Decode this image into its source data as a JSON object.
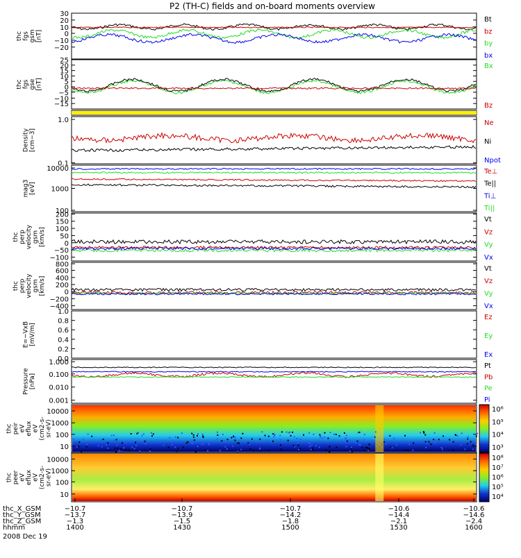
{
  "title": "P2 (TH-C) fields and on-board moments overview",
  "colors": {
    "black": "#000000",
    "red": "#cc0000",
    "green": "#22dd22",
    "blue": "#0000ee",
    "yellow": "#ffee00"
  },
  "panels": [
    {
      "ylabel": [
        "thc",
        "fgs",
        "gsm",
        "[nT]"
      ],
      "ticks": [
        "30",
        "20",
        "10",
        "0",
        "−10",
        "−20"
      ],
      "legend": [
        {
          "text": "Bt",
          "color": "black"
        },
        {
          "text": "bz",
          "color": "red"
        },
        {
          "text": "by",
          "color": "green"
        },
        {
          "text": "bx",
          "color": "blue"
        }
      ]
    },
    {
      "ylabel": [
        "thc",
        "fgs",
        "gse",
        "[nT]"
      ],
      "ticks": [
        "25",
        "20",
        "15",
        "10",
        "5",
        "0",
        "−5",
        "−10",
        "−15"
      ],
      "legend": [
        {
          "text": "Bx",
          "color": "green"
        },
        {
          "text": "Bz",
          "color": "red"
        }
      ]
    },
    {
      "ylabel": [],
      "ticks": [],
      "legend": []
    },
    {
      "ylabel": [
        "Density",
        "[cm−3]"
      ],
      "ticks": [
        "1.0",
        "0.1"
      ],
      "legend": [
        {
          "text": "Ne",
          "color": "red"
        },
        {
          "text": "Ni",
          "color": "black"
        },
        {
          "text": "Npot",
          "color": "blue"
        }
      ]
    },
    {
      "ylabel": [
        "mag3",
        "[eV]"
      ],
      "ticks": [
        "10000",
        "1000",
        "100"
      ],
      "legend": [
        {
          "text": "Te⊥",
          "color": "red"
        },
        {
          "text": "Te||",
          "color": "black"
        },
        {
          "text": "Ti⊥",
          "color": "blue"
        },
        {
          "text": "Ti||",
          "color": "green"
        }
      ]
    },
    {
      "ylabel": [
        "thc",
        "perp",
        "velocity",
        "gsm",
        "[km/s]"
      ],
      "ticks": [
        "200",
        "150",
        "100",
        "50",
        "0",
        "−50",
        "−100"
      ],
      "legend": [
        {
          "text": "Vt",
          "color": "black"
        },
        {
          "text": "Vz",
          "color": "red"
        },
        {
          "text": "Vy",
          "color": "green"
        },
        {
          "text": "Vx",
          "color": "blue"
        }
      ]
    },
    {
      "ylabel": [
        "thc",
        "perp",
        "velocity",
        "gsm",
        "[km/s]"
      ],
      "ticks": [
        "800",
        "600",
        "400",
        "200",
        "0",
        "−200",
        "−400"
      ],
      "legend": [
        {
          "text": "Vt",
          "color": "black"
        },
        {
          "text": "Vz",
          "color": "red"
        },
        {
          "text": "Vy",
          "color": "green"
        },
        {
          "text": "Vx",
          "color": "blue"
        }
      ]
    },
    {
      "ylabel": [
        "E=−VxB",
        "[mV/m]"
      ],
      "ticks": [
        "1.0",
        "0.8",
        "0.6",
        "0.4",
        "0.2",
        "0.0"
      ],
      "legend": [
        {
          "text": "Ez",
          "color": "red"
        },
        {
          "text": "Ey",
          "color": "green"
        },
        {
          "text": "Ex",
          "color": "blue"
        }
      ]
    },
    {
      "ylabel": [
        "Pressure",
        "[nPa]"
      ],
      "ticks": [
        "1.000",
        "0.100",
        "0.010",
        "0.001"
      ],
      "legend": [
        {
          "text": "Pt",
          "color": "black"
        },
        {
          "text": "Pb",
          "color": "red"
        },
        {
          "text": "Pe",
          "color": "green"
        },
        {
          "text": "Pi",
          "color": "blue"
        }
      ]
    },
    {
      "ylabel": [
        "thc",
        "peir",
        "eV",
        "eflux",
        "eV",
        "(cm2-s-",
        "sr-eV)"
      ],
      "ticks": [
        "10000",
        "1000",
        "100",
        "10"
      ],
      "legend": []
    },
    {
      "ylabel": [
        "thc",
        "peer",
        "eV",
        "eflux",
        "eV",
        "(cm2-s-",
        "sr-eV)"
      ],
      "ticks": [
        "10000",
        "1000",
        "100",
        "10"
      ],
      "legend": []
    }
  ],
  "colorbars": [
    {
      "labels": [
        "10⁶",
        "10⁵",
        "10⁴",
        "10³"
      ]
    },
    {
      "labels": [
        "10⁸",
        "10⁷",
        "10⁶",
        "10⁵",
        "10⁴"
      ]
    }
  ],
  "xaxis": {
    "rows": [
      {
        "label": "thc_X_GSM",
        "values": [
          "−10.7",
          "−10.7",
          "−10.7",
          "−10.6",
          "−10.6"
        ]
      },
      {
        "label": "thc_Y_GSM",
        "values": [
          "−13.7",
          "−13.9",
          "−14.2",
          "−14.4",
          "−14.6"
        ]
      },
      {
        "label": "thc_Z_GSM",
        "values": [
          "−1.3",
          "−1.5",
          "−1.8",
          "−2.1",
          "−2.4"
        ]
      },
      {
        "label": "hhmm",
        "values": [
          "1400",
          "1430",
          "1500",
          "1530",
          "1600"
        ]
      }
    ],
    "date": "2008 Dec 19"
  },
  "chart_data": {
    "type": "line",
    "title": "P2 (TH-C) fields and on-board moments overview",
    "x": [
      "1400",
      "1430",
      "1500",
      "1530",
      "1600"
    ],
    "xlabel": "hhmm",
    "date": "2008 Dec 19",
    "panels": [
      {
        "ylim": [
          -25,
          35
        ],
        "series": [
          {
            "name": "Bt",
            "values": [
              10,
              12,
              15,
              25,
              12
            ]
          },
          {
            "name": "bz",
            "values": [
              9,
              8,
              7,
              5,
              4
            ]
          },
          {
            "name": "by",
            "values": [
              3,
              0,
              5,
              -8,
              5
            ]
          },
          {
            "name": "bx",
            "values": [
              -3,
              -5,
              0,
              -15,
              0
            ]
          }
        ]
      },
      {
        "ylim": [
          -17,
          27
        ],
        "series": [
          {
            "name": "Bx",
            "values": [
              2,
              5,
              12,
              -5,
              8
            ]
          },
          {
            "name": "Bz",
            "values": [
              1,
              1,
              0,
              0,
              -1
            ]
          }
        ]
      },
      {
        "ylim": [
          0.1,
          1.3
        ],
        "scale": "log",
        "series": [
          {
            "name": "Ne",
            "values": [
              0.35,
              0.4,
              0.3,
              0.55,
              0.45
            ]
          },
          {
            "name": "Ni",
            "values": [
              0.22,
              0.22,
              0.25,
              0.28,
              0.28
            ]
          }
        ]
      },
      {
        "ylim": [
          100,
          12000
        ],
        "scale": "log",
        "series": [
          {
            "name": "Te⊥",
            "values": [
              2500,
              2200,
              2300,
              1500,
              2000
            ]
          },
          {
            "name": "Te||",
            "values": [
              1800,
              1700,
              1800,
              1000,
              1500
            ]
          },
          {
            "name": "Ti⊥",
            "values": [
              8000,
              7800,
              8000,
              7000,
              8000
            ]
          },
          {
            "name": "Ti||",
            "values": [
              6000,
              5800,
              6000,
              5000,
              6000
            ]
          }
        ]
      },
      {
        "ylim": [
          -100,
          200
        ],
        "series": [
          {
            "name": "Vt",
            "values": [
              30,
              35,
              40,
              60,
              50
            ]
          },
          {
            "name": "Vz",
            "values": [
              10,
              5,
              5,
              10,
              0
            ]
          },
          {
            "name": "Vy",
            "values": [
              5,
              0,
              0,
              -10,
              -30
            ]
          },
          {
            "name": "Vx",
            "values": [
              15,
              10,
              10,
              5,
              20
            ]
          }
        ]
      },
      {
        "ylim": [
          -400,
          800
        ],
        "series": [
          {
            "name": "Vt",
            "values": [
              60,
              80,
              90,
              120,
              80
            ]
          },
          {
            "name": "Vz",
            "values": [
              0,
              0,
              0,
              0,
              0
            ]
          },
          {
            "name": "Vy",
            "values": [
              -30,
              -40,
              -40,
              -50,
              -30
            ]
          },
          {
            "name": "Vx",
            "values": [
              -20,
              -30,
              -40,
              -40,
              -20
            ]
          }
        ]
      },
      {
        "ylim": [
          0,
          1
        ],
        "series": []
      },
      {
        "ylim": [
          0.001,
          1
        ],
        "scale": "log",
        "series": [
          {
            "name": "Pt",
            "values": [
              0.22,
              0.22,
              0.26,
              0.28,
              0.27
            ]
          },
          {
            "name": "Pb",
            "values": [
              0.12,
              0.11,
              0.1,
              0.07,
              0.08
            ]
          },
          {
            "name": "Pe",
            "values": [
              0.03,
              0.035,
              0.04,
              0.05,
              0.05
            ]
          },
          {
            "name": "Pi",
            "values": [
              0.14,
              0.15,
              0.16,
              0.17,
              0.16
            ]
          }
        ]
      }
    ]
  }
}
